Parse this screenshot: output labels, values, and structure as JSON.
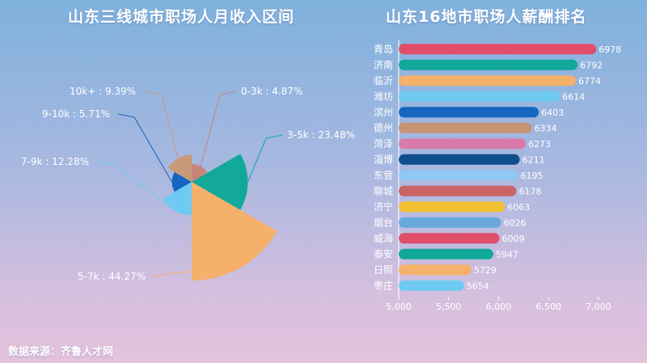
{
  "chart_data": [
    {
      "type": "pie",
      "title": "山东三线城市职场人月收入区间",
      "subtype": "rose",
      "slices": [
        {
          "label": "0-3k",
          "value": 4.87,
          "display": "0-3k : 4.87%",
          "color": "#c6857b"
        },
        {
          "label": "3-5k",
          "value": 23.48,
          "display": "3-5k : 23.48%",
          "color": "#12a89a"
        },
        {
          "label": "5-7k",
          "value": 44.27,
          "display": "5-7k : 44.27%",
          "color": "#f5b06a"
        },
        {
          "label": "7-9k",
          "value": 12.28,
          "display": "7-9k : 12.28%",
          "color": "#6ecaf0"
        },
        {
          "label": "9-10k",
          "value": 5.71,
          "display": "9-10k : 5.71%",
          "color": "#1565c0"
        },
        {
          "label": "10k+",
          "value": 9.39,
          "display": "10k+ : 9.39%",
          "color": "#c99a78"
        }
      ]
    },
    {
      "type": "bar",
      "orientation": "horizontal",
      "title": "山东16地市职场人薪酬排名",
      "categories": [
        "青岛",
        "济南",
        "临沂",
        "潍坊",
        "滨州",
        "德州",
        "菏泽",
        "淄博",
        "东营",
        "聊城",
        "济宁",
        "烟台",
        "威海",
        "泰安",
        "日照",
        "枣庄"
      ],
      "values": [
        6978,
        6792,
        6774,
        6614,
        6403,
        6334,
        6273,
        6211,
        6195,
        6178,
        6063,
        6026,
        6009,
        5947,
        5729,
        5654
      ],
      "colors": [
        "#e04e69",
        "#12a89a",
        "#f5b06a",
        "#6ecaf0",
        "#1567c0",
        "#c69474",
        "#d97ba9",
        "#0f4e8c",
        "#8fc7f5",
        "#c96366",
        "#f2c031",
        "#6aa8e0",
        "#e04e69",
        "#12a89a",
        "#f5b06a",
        "#6ecaf0"
      ],
      "xlim": [
        5000,
        7000
      ],
      "xticks": [
        "5,000",
        "5,500",
        "6,000",
        "6,500",
        "7,000"
      ],
      "xtick_values": [
        5000,
        5500,
        6000,
        6500,
        7000
      ]
    }
  ],
  "source_text": "数据来源：齐鲁人才网"
}
